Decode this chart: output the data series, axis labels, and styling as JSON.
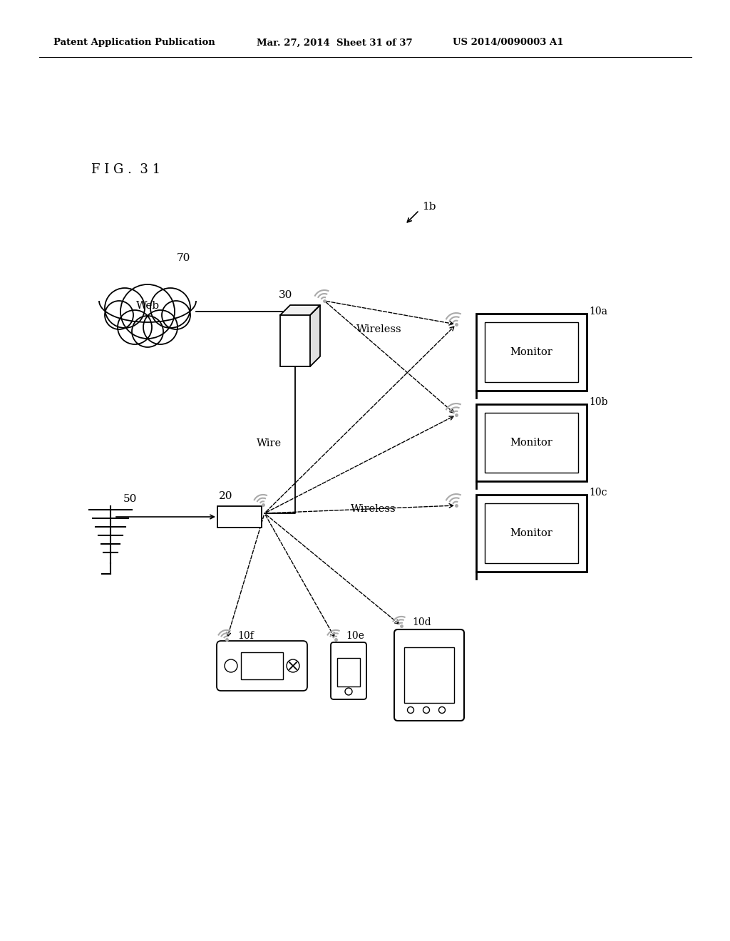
{
  "bg_color": "#ffffff",
  "header_left": "Patent Application Publication",
  "header_mid": "Mar. 27, 2014  Sheet 31 of 37",
  "header_right": "US 2014/0090003 A1",
  "fig_label": "F I G .  3 1",
  "label_1b": "1b",
  "label_70": "70",
  "label_30": "30",
  "label_20": "20",
  "label_50": "50",
  "label_10a": "10a",
  "label_10b": "10b",
  "label_10c": "10c",
  "label_10d": "10d",
  "label_10e": "10e",
  "label_10f": "10f",
  "label_wire": "Wire",
  "label_wireless_top": "Wireless",
  "label_wireless_mid": "Wireless",
  "line_color": "#000000",
  "gray_color": "#aaaaaa"
}
